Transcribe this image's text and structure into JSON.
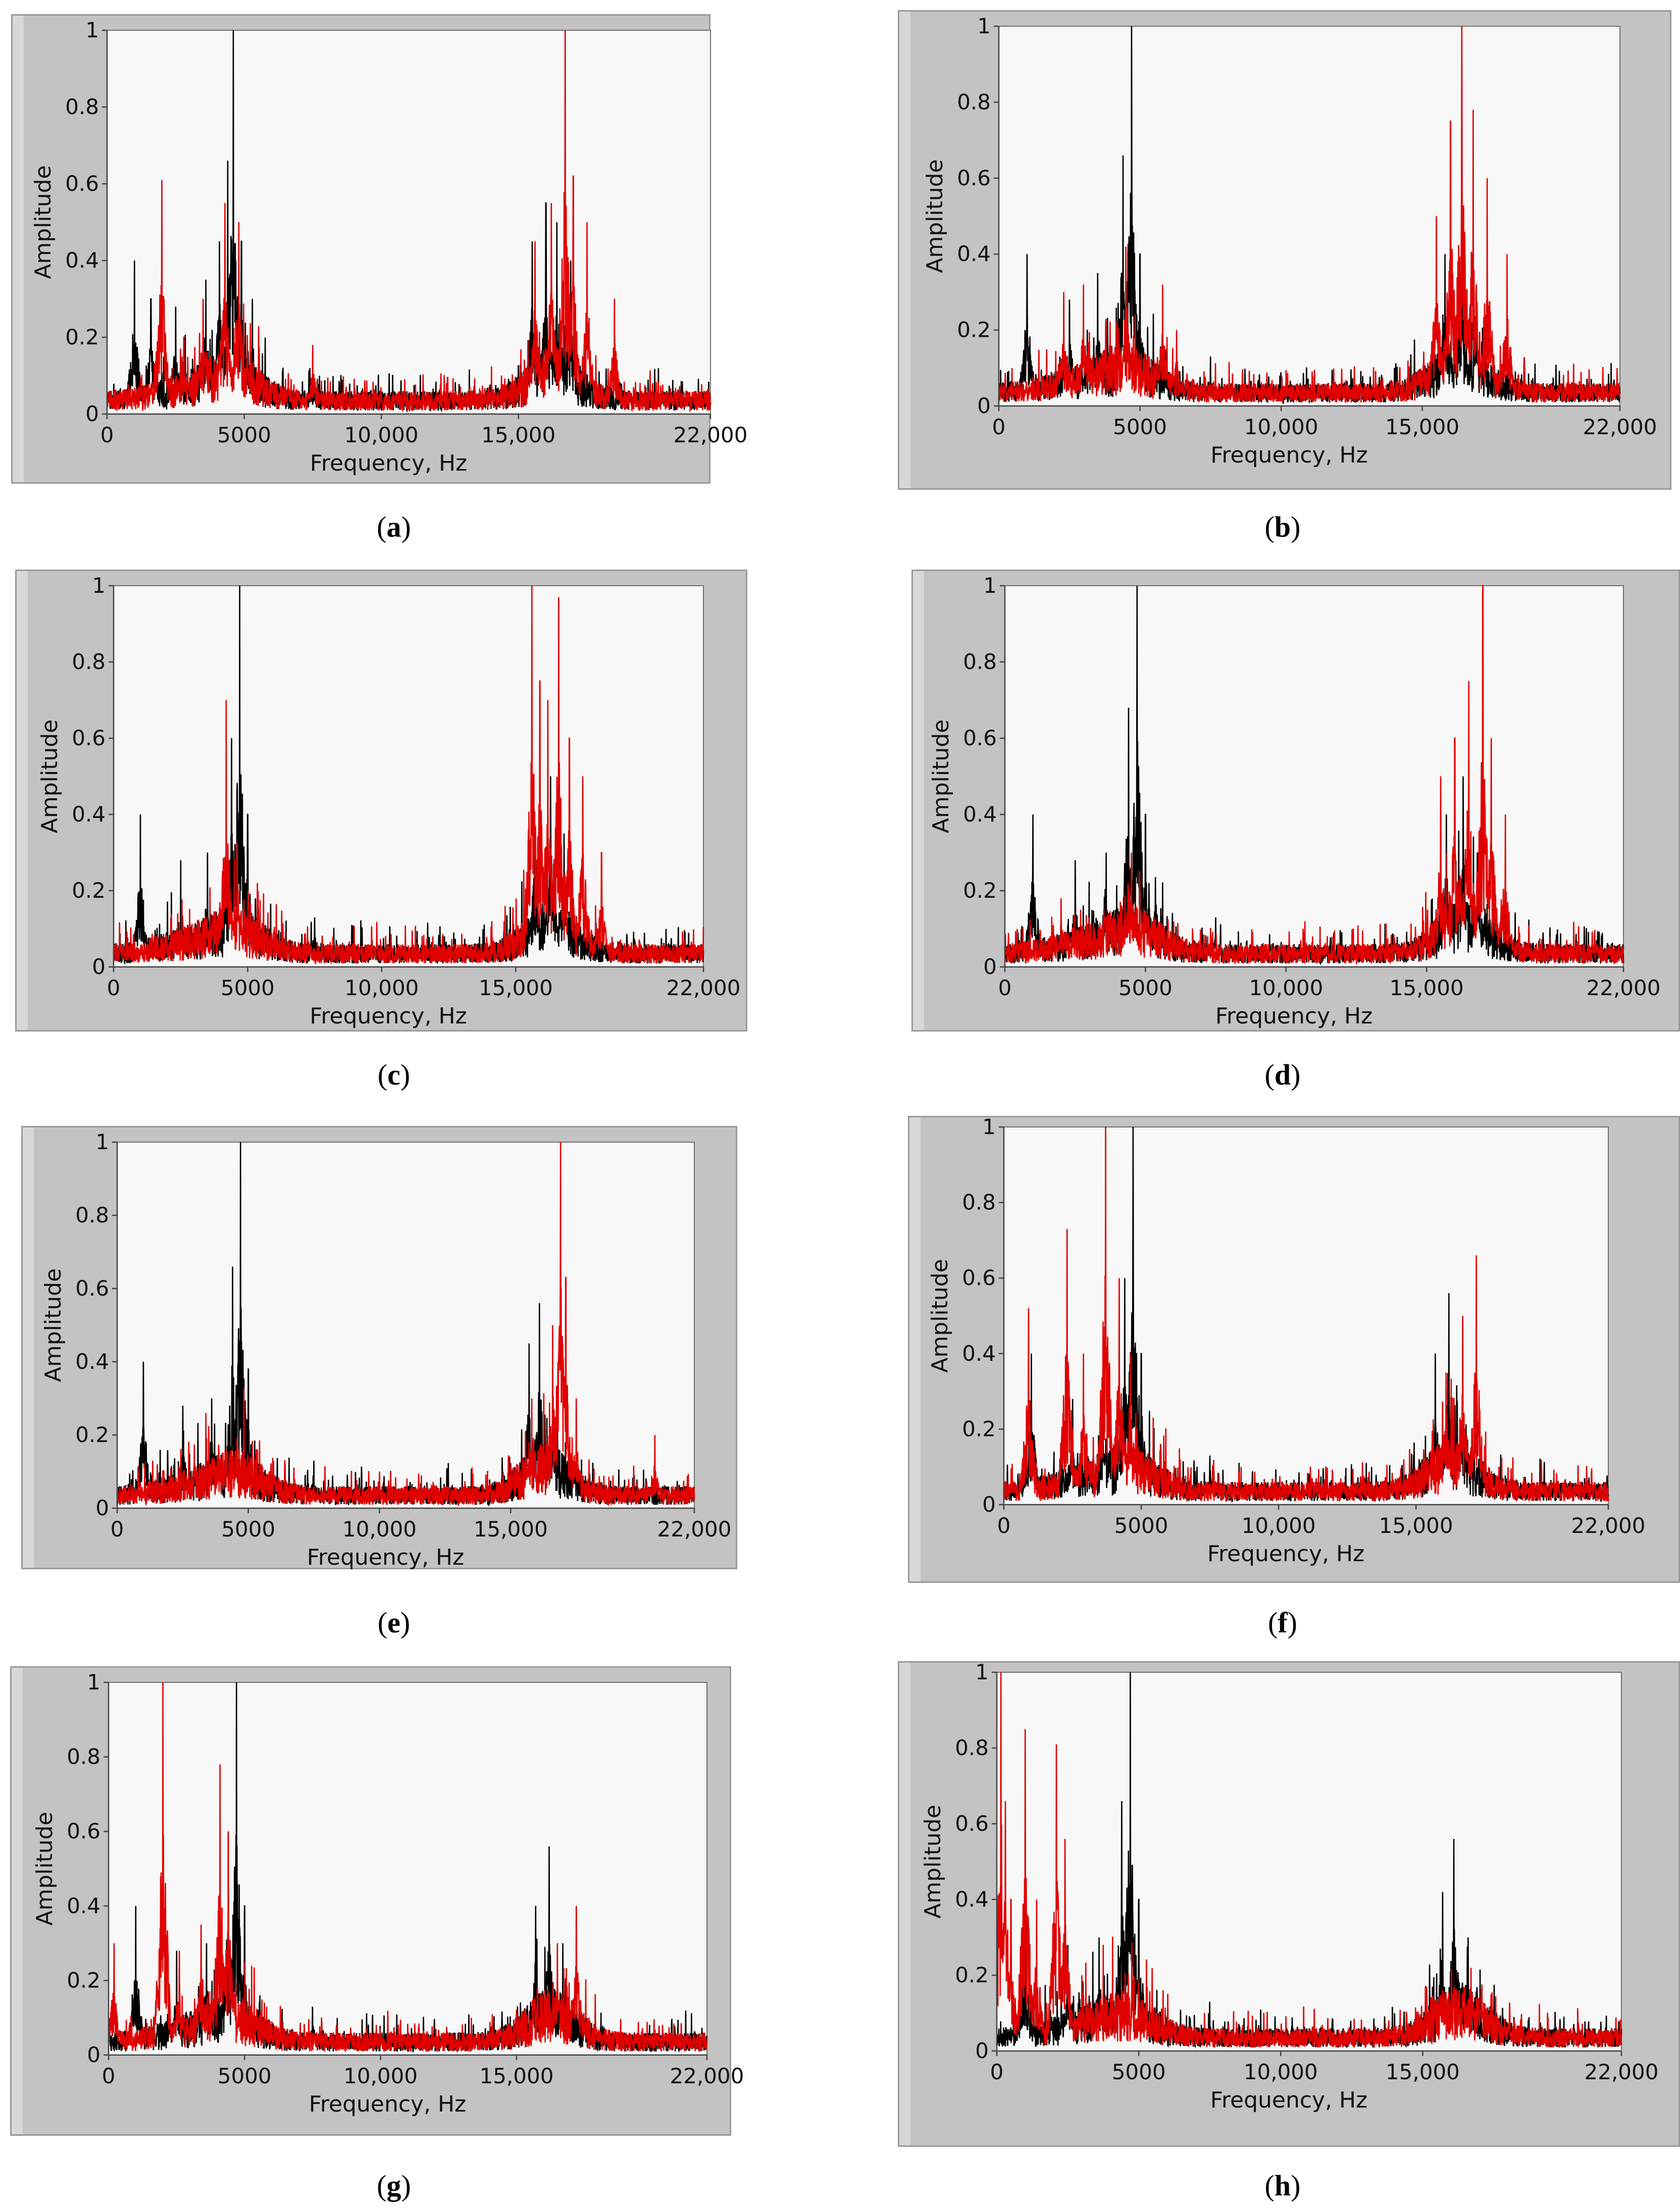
{
  "chart_data": [
    {
      "type": "line",
      "panel": "a",
      "caption_open": "(",
      "caption_letter": "a",
      "caption_close": ")",
      "xlabel": "Frequency, Hz",
      "ylabel": "Amplitude",
      "xlim": [
        0,
        22000
      ],
      "ylim": [
        0,
        1
      ],
      "xticks": [
        "0",
        "5000",
        "10,000",
        "15,000",
        "22,000"
      ],
      "xtick_values": [
        0,
        5000,
        10000,
        15000,
        22000
      ],
      "yticks": [
        "0",
        "0.2",
        "0.4",
        "0.6",
        "0.8",
        "1"
      ],
      "ytick_values": [
        0,
        0.2,
        0.4,
        0.6,
        0.8,
        1
      ],
      "series": [
        {
          "name": "black",
          "color": "#000000",
          "peaks": [
            [
              1000,
              0.4
            ],
            [
              1600,
              0.3
            ],
            [
              2500,
              0.28
            ],
            [
              3600,
              0.35
            ],
            [
              4100,
              0.45
            ],
            [
              4400,
              0.66
            ],
            [
              4600,
              1.0
            ],
            [
              4900,
              0.45
            ],
            [
              5300,
              0.3
            ],
            [
              7400,
              0.12
            ],
            [
              15500,
              0.45
            ],
            [
              16000,
              0.55
            ],
            [
              16400,
              0.5
            ],
            [
              16900,
              0.4
            ]
          ]
        },
        {
          "name": "red",
          "color": "#e00000",
          "peaks": [
            [
              2000,
              0.61
            ],
            [
              2800,
              0.2
            ],
            [
              3500,
              0.3
            ],
            [
              4300,
              0.55
            ],
            [
              4800,
              0.5
            ],
            [
              7500,
              0.18
            ],
            [
              15600,
              0.45
            ],
            [
              16200,
              0.55
            ],
            [
              16700,
              1.0
            ],
            [
              17000,
              0.62
            ],
            [
              17500,
              0.5
            ],
            [
              18500,
              0.3
            ]
          ]
        }
      ]
    },
    {
      "type": "line",
      "panel": "b",
      "caption_open": "(",
      "caption_letter": "b",
      "caption_close": ")",
      "xlabel": "Frequency, Hz",
      "ylabel": "Amplitude",
      "xlim": [
        0,
        22000
      ],
      "ylim": [
        0,
        1
      ],
      "xticks": [
        "0",
        "5000",
        "10,000",
        "15,000",
        "22,000"
      ],
      "xtick_values": [
        0,
        5000,
        10000,
        15000,
        22000
      ],
      "yticks": [
        "0",
        "0.2",
        "0.4",
        "0.6",
        "0.8",
        "1"
      ],
      "ytick_values": [
        0,
        0.2,
        0.4,
        0.6,
        0.8,
        1
      ],
      "series": [
        {
          "name": "black",
          "color": "#000000",
          "peaks": [
            [
              1000,
              0.4
            ],
            [
              2500,
              0.28
            ],
            [
              3500,
              0.35
            ],
            [
              4400,
              0.66
            ],
            [
              4700,
              1.0
            ],
            [
              5000,
              0.4
            ],
            [
              7500,
              0.13
            ],
            [
              15800,
              0.4
            ],
            [
              16400,
              0.45
            ],
            [
              16900,
              0.3
            ]
          ]
        },
        {
          "name": "red",
          "color": "#e00000",
          "peaks": [
            [
              2300,
              0.3
            ],
            [
              3000,
              0.32
            ],
            [
              4500,
              0.42
            ],
            [
              5800,
              0.32
            ],
            [
              6300,
              0.2
            ],
            [
              15500,
              0.5
            ],
            [
              16000,
              0.75
            ],
            [
              16400,
              1.0
            ],
            [
              16800,
              0.78
            ],
            [
              17300,
              0.6
            ],
            [
              18000,
              0.4
            ]
          ]
        }
      ]
    },
    {
      "type": "line",
      "panel": "c",
      "caption_open": "(",
      "caption_letter": "c",
      "caption_close": ")",
      "xlabel": "Frequency, Hz",
      "ylabel": "Amplitude",
      "xlim": [
        0,
        22000
      ],
      "ylim": [
        0,
        1
      ],
      "xticks": [
        "0",
        "5000",
        "10,000",
        "15,000",
        "22,000"
      ],
      "xtick_values": [
        0,
        5000,
        10000,
        15000,
        22000
      ],
      "yticks": [
        "0",
        "0.2",
        "0.4",
        "0.6",
        "0.8",
        "1"
      ],
      "ytick_values": [
        0,
        0.2,
        0.4,
        0.6,
        0.8,
        1
      ],
      "series": [
        {
          "name": "black",
          "color": "#000000",
          "peaks": [
            [
              1000,
              0.4
            ],
            [
              2500,
              0.28
            ],
            [
              3500,
              0.3
            ],
            [
              4400,
              0.6
            ],
            [
              4700,
              1.0
            ],
            [
              5000,
              0.4
            ],
            [
              7500,
              0.13
            ],
            [
              15700,
              0.4
            ],
            [
              16300,
              0.5
            ],
            [
              16800,
              0.35
            ]
          ]
        },
        {
          "name": "red",
          "color": "#e00000",
          "peaks": [
            [
              4200,
              0.7
            ],
            [
              4600,
              0.3
            ],
            [
              15600,
              1.0
            ],
            [
              15900,
              0.75
            ],
            [
              16200,
              0.7
            ],
            [
              16600,
              0.97
            ],
            [
              17000,
              0.6
            ],
            [
              17500,
              0.5
            ],
            [
              18200,
              0.3
            ]
          ]
        }
      ]
    },
    {
      "type": "line",
      "panel": "d",
      "caption_open": "(",
      "caption_letter": "d",
      "caption_close": ")",
      "xlabel": "Frequency, Hz",
      "ylabel": "Amplitude",
      "xlim": [
        0,
        22000
      ],
      "ylim": [
        0,
        1
      ],
      "xticks": [
        "0",
        "5000",
        "10,000",
        "15,000",
        "22,000"
      ],
      "xtick_values": [
        0,
        5000,
        10000,
        15000,
        22000
      ],
      "yticks": [
        "0",
        "0.2",
        "0.4",
        "0.6",
        "0.8",
        "1"
      ],
      "ytick_values": [
        0,
        0.2,
        0.4,
        0.6,
        0.8,
        1
      ],
      "series": [
        {
          "name": "black",
          "color": "#000000",
          "peaks": [
            [
              1000,
              0.4
            ],
            [
              2500,
              0.28
            ],
            [
              3600,
              0.3
            ],
            [
              4400,
              0.68
            ],
            [
              4700,
              1.0
            ],
            [
              5000,
              0.4
            ],
            [
              7500,
              0.13
            ],
            [
              15700,
              0.4
            ],
            [
              16300,
              0.5
            ],
            [
              16800,
              0.3
            ]
          ]
        },
        {
          "name": "red",
          "color": "#e00000",
          "peaks": [
            [
              2000,
              0.18
            ],
            [
              4500,
              0.3
            ],
            [
              15500,
              0.5
            ],
            [
              16000,
              0.6
            ],
            [
              16500,
              0.75
            ],
            [
              17000,
              1.0
            ],
            [
              17300,
              0.6
            ],
            [
              17800,
              0.4
            ]
          ]
        }
      ]
    },
    {
      "type": "line",
      "panel": "e",
      "caption_open": "(",
      "caption_letter": "e",
      "caption_close": ")",
      "xlabel": "Frequency, Hz",
      "ylabel": "Amplitude",
      "xlim": [
        0,
        22000
      ],
      "ylim": [
        0,
        1
      ],
      "xticks": [
        "0",
        "5000",
        "10,000",
        "15,000",
        "22,000"
      ],
      "xtick_values": [
        0,
        5000,
        10000,
        15000,
        22000
      ],
      "yticks": [
        "0",
        "0.2",
        "0.4",
        "0.6",
        "0.8",
        "1"
      ],
      "ytick_values": [
        0,
        0.2,
        0.4,
        0.6,
        0.8,
        1
      ],
      "series": [
        {
          "name": "black",
          "color": "#000000",
          "peaks": [
            [
              1000,
              0.4
            ],
            [
              2500,
              0.28
            ],
            [
              3600,
              0.3
            ],
            [
              4400,
              0.66
            ],
            [
              4700,
              1.0
            ],
            [
              5000,
              0.38
            ],
            [
              7500,
              0.13
            ],
            [
              15700,
              0.45
            ],
            [
              16100,
              0.56
            ],
            [
              16600,
              0.35
            ]
          ]
        },
        {
          "name": "red",
          "color": "#e00000",
          "peaks": [
            [
              4500,
              0.15
            ],
            [
              15800,
              0.3
            ],
            [
              16600,
              0.5
            ],
            [
              16900,
              1.0
            ],
            [
              17100,
              0.63
            ],
            [
              17500,
              0.3
            ],
            [
              20500,
              0.2
            ]
          ]
        }
      ]
    },
    {
      "type": "line",
      "panel": "f",
      "caption_open": "(",
      "caption_letter": "f",
      "caption_close": ")",
      "xlabel": "Frequency, Hz",
      "ylabel": "Amplitude",
      "xlim": [
        0,
        22000
      ],
      "ylim": [
        0,
        1
      ],
      "xticks": [
        "0",
        "5000",
        "10,000",
        "15,000",
        "22,000"
      ],
      "xtick_values": [
        0,
        5000,
        10000,
        15000,
        22000
      ],
      "yticks": [
        "0",
        "0.2",
        "0.4",
        "0.6",
        "0.8",
        "1"
      ],
      "ytick_values": [
        0,
        0.2,
        0.4,
        0.6,
        0.8,
        1
      ],
      "series": [
        {
          "name": "black",
          "color": "#000000",
          "peaks": [
            [
              1000,
              0.4
            ],
            [
              2500,
              0.28
            ],
            [
              3600,
              0.32
            ],
            [
              4400,
              0.6
            ],
            [
              4700,
              1.0
            ],
            [
              5000,
              0.4
            ],
            [
              7500,
              0.13
            ],
            [
              15700,
              0.4
            ],
            [
              16200,
              0.56
            ],
            [
              16700,
              0.3
            ]
          ]
        },
        {
          "name": "red",
          "color": "#e00000",
          "peaks": [
            [
              900,
              0.52
            ],
            [
              2300,
              0.73
            ],
            [
              2900,
              0.4
            ],
            [
              3700,
              1.0
            ],
            [
              4200,
              0.6
            ],
            [
              4600,
              0.4
            ],
            [
              16100,
              0.35
            ],
            [
              16700,
              0.5
            ],
            [
              17200,
              0.66
            ]
          ]
        }
      ]
    },
    {
      "type": "line",
      "panel": "g",
      "caption_open": "(",
      "caption_letter": "g",
      "caption_close": ")",
      "xlabel": "Frequency, Hz",
      "ylabel": "Amplitude",
      "xlim": [
        0,
        22000
      ],
      "ylim": [
        0,
        1
      ],
      "xticks": [
        "0",
        "5000",
        "10,000",
        "15,000",
        "22,000"
      ],
      "xtick_values": [
        0,
        5000,
        10000,
        15000,
        22000
      ],
      "yticks": [
        "0",
        "0.2",
        "0.4",
        "0.6",
        "0.8",
        "1"
      ],
      "ytick_values": [
        0,
        0.2,
        0.4,
        0.6,
        0.8,
        1
      ],
      "series": [
        {
          "name": "black",
          "color": "#000000",
          "peaks": [
            [
              1000,
              0.4
            ],
            [
              2500,
              0.28
            ],
            [
              3600,
              0.3
            ],
            [
              4400,
              0.6
            ],
            [
              4700,
              1.0
            ],
            [
              5000,
              0.4
            ],
            [
              7500,
              0.13
            ],
            [
              15700,
              0.4
            ],
            [
              16200,
              0.56
            ],
            [
              16700,
              0.3
            ]
          ]
        },
        {
          "name": "red",
          "color": "#e00000",
          "peaks": [
            [
              200,
              0.3
            ],
            [
              2000,
              1.0
            ],
            [
              2600,
              0.28
            ],
            [
              3400,
              0.35
            ],
            [
              4100,
              0.78
            ],
            [
              4400,
              0.6
            ],
            [
              16500,
              0.3
            ],
            [
              17200,
              0.4
            ]
          ]
        }
      ]
    },
    {
      "type": "line",
      "panel": "h",
      "caption_open": "(",
      "caption_letter": "h",
      "caption_close": ")",
      "xlabel": "Frequency, Hz",
      "ylabel": "Amplitude",
      "xlim": [
        0,
        22000
      ],
      "ylim": [
        0,
        1
      ],
      "xticks": [
        "0",
        "5000",
        "10,000",
        "15,000",
        "22,000"
      ],
      "xtick_values": [
        0,
        5000,
        10000,
        15000,
        22000
      ],
      "yticks": [
        "0",
        "0.2",
        "0.4",
        "0.6",
        "0.8",
        "1"
      ],
      "ytick_values": [
        0,
        0.2,
        0.4,
        0.6,
        0.8,
        1
      ],
      "series": [
        {
          "name": "black",
          "color": "#000000",
          "peaks": [
            [
              1000,
              0.4
            ],
            [
              2500,
              0.28
            ],
            [
              3600,
              0.3
            ],
            [
              4400,
              0.66
            ],
            [
              4700,
              1.0
            ],
            [
              5000,
              0.4
            ],
            [
              7500,
              0.13
            ],
            [
              15700,
              0.42
            ],
            [
              16100,
              0.56
            ],
            [
              16600,
              0.3
            ]
          ]
        },
        {
          "name": "red",
          "color": "#e00000",
          "peaks": [
            [
              150,
              1.0
            ],
            [
              300,
              0.66
            ],
            [
              500,
              0.4
            ],
            [
              1000,
              0.85
            ],
            [
              1400,
              0.4
            ],
            [
              2100,
              0.81
            ],
            [
              2400,
              0.56
            ],
            [
              3000,
              0.2
            ]
          ]
        }
      ]
    }
  ]
}
